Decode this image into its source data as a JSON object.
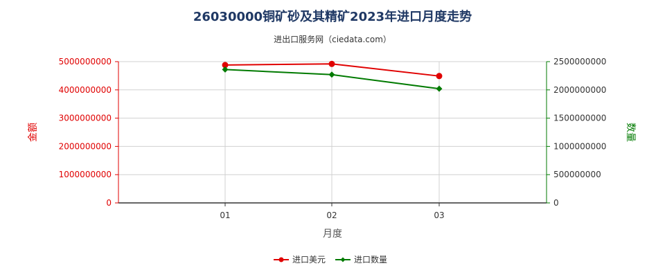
{
  "title": "26030000铜矿砂及其精矿2023年进口月度走势",
  "subtitle": "进出口服务网（ciedata.com）",
  "colors": {
    "left_axis": "#e00000",
    "right_axis": "#007a00",
    "title": "#1f3864"
  },
  "chart_data": {
    "type": "line",
    "title": "26030000铜矿砂及其精矿2023年进口月度走势",
    "subtitle": "进出口服务网（ciedata.com）",
    "xlabel": "月度",
    "categories": [
      "01",
      "02",
      "03"
    ],
    "y_left": {
      "label": "金额",
      "ylim": [
        0,
        5000000000
      ],
      "ticks": [
        "0",
        "1000000000",
        "2000000000",
        "3000000000",
        "4000000000",
        "5000000000"
      ]
    },
    "y_right": {
      "label": "数量",
      "ylim": [
        0,
        2500000000
      ],
      "ticks": [
        "0",
        "500000000",
        "1000000000",
        "1500000000",
        "2000000000",
        "2500000000"
      ]
    },
    "series": [
      {
        "name": "进口美元",
        "axis": "left",
        "color": "#e00000",
        "marker": "circle",
        "values": [
          4880000000,
          4920000000,
          4490000000
        ]
      },
      {
        "name": "进口数量",
        "axis": "right",
        "color": "#007a00",
        "marker": "diamond",
        "values": [
          2360000000,
          2270000000,
          2020000000
        ]
      }
    ],
    "grid": true,
    "legend": "bottom-center"
  }
}
